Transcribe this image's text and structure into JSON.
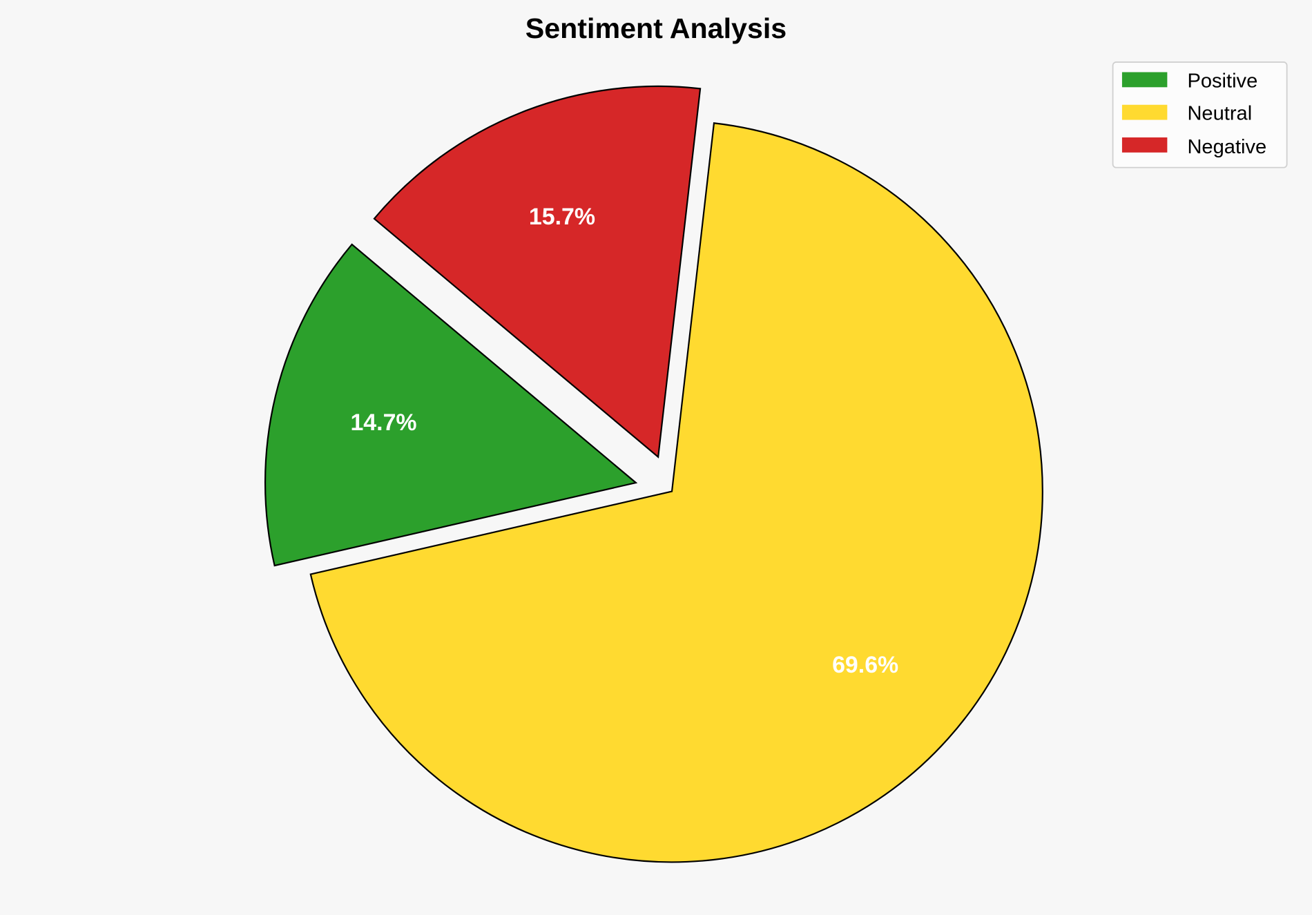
{
  "chart_data": {
    "type": "pie",
    "title": "Sentiment Analysis",
    "categories": [
      "Positive",
      "Neutral",
      "Negative"
    ],
    "values": [
      14.7,
      69.6,
      15.7
    ],
    "value_labels": [
      "14.7%",
      "69.6%",
      "15.7%"
    ],
    "colors": [
      "#2ca02c",
      "#ffda30",
      "#d62728"
    ],
    "explode": [
      0.1,
      0,
      0.1
    ],
    "start_angle_deg": 140,
    "direction": "counterclockwise",
    "legend_position": "top-right",
    "background": "#f7f7f7"
  }
}
